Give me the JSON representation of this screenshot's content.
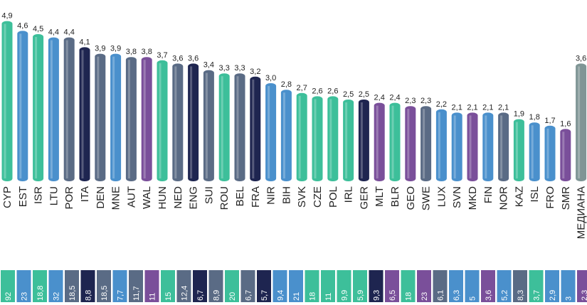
{
  "chart_data": {
    "type": "bar",
    "categories": [
      "CYP",
      "EST",
      "ISR",
      "LTU",
      "POR",
      "ITA",
      "DEN",
      "MNE",
      "AUT",
      "WAL",
      "HUN",
      "NED",
      "ENG",
      "SUI",
      "ROU",
      "BEL",
      "FRA",
      "NIR",
      "BIH",
      "SVK",
      "CZE",
      "POL",
      "IRL",
      "GER",
      "MLT",
      "BLR",
      "GEO",
      "SWE",
      "LUX",
      "SVN",
      "MKD",
      "FIN",
      "NOR",
      "KAZ",
      "ISL",
      "FRO",
      "SMR",
      "МЕДИАНА"
    ],
    "values": [
      4.9,
      4.6,
      4.5,
      4.4,
      4.4,
      4.1,
      3.9,
      3.9,
      3.8,
      3.8,
      3.7,
      3.6,
      3.6,
      3.4,
      3.3,
      3.3,
      3.2,
      3.0,
      2.8,
      2.7,
      2.6,
      2.6,
      2.5,
      2.5,
      2.4,
      2.4,
      2.3,
      2.3,
      2.2,
      2.1,
      2.1,
      2.1,
      2.1,
      1.9,
      1.8,
      1.7,
      1.6,
      3.6
    ],
    "value_labels": [
      "4,9",
      "4,6",
      "4,5",
      "4,4",
      "4,4",
      "4,1",
      "3,9",
      "3,9",
      "3,8",
      "3,8",
      "3,7",
      "3,6",
      "3,6",
      "3,4",
      "3,3",
      "3,3",
      "3,2",
      "3,0",
      "2,8",
      "2,7",
      "2,6",
      "2,6",
      "2,5",
      "2,5",
      "2,4",
      "2,4",
      "2,3",
      "2,3",
      "2,2",
      "2,1",
      "2,1",
      "2,1",
      "2,1",
      "1,9",
      "1,8",
      "1,7",
      "1,6",
      "3,6"
    ],
    "colors": [
      "#3dbf9a",
      "#4a90cc",
      "#3dbf9a",
      "#4a90cc",
      "#5a6b85",
      "#1e2550",
      "#5a6b85",
      "#4a90cc",
      "#5a6b85",
      "#7a4f9a",
      "#3dbf9a",
      "#5a6b85",
      "#1e2550",
      "#5a6b85",
      "#3dbf9a",
      "#5a6b85",
      "#1e2550",
      "#4a90cc",
      "#4a90cc",
      "#3dbf9a",
      "#3dbf9a",
      "#3dbf9a",
      "#3dbf9a",
      "#1e2550",
      "#7a4f9a",
      "#3dbf9a",
      "#7a4f9a",
      "#5a6b85",
      "#4a90cc",
      "#4a90cc",
      "#7a4f9a",
      "#4a90cc",
      "#5a6b85",
      "#3dbf9a",
      "#4a90cc",
      "#4a90cc",
      "#7a4f9a",
      "#7f9595"
    ],
    "bottom_labels": [
      "92",
      "23",
      "18,8",
      "32",
      "18,5",
      "8,8",
      "18,5",
      "7,7",
      "11,7",
      "11",
      "15",
      "12,4",
      "6,7",
      "8,9",
      "20",
      "6,7",
      "5,7",
      "9,4",
      "21",
      "18",
      "11",
      "9,9",
      "5,9",
      "9,3",
      "6,5",
      "18",
      "23",
      "6,1",
      "6,3",
      "5",
      "3,6",
      "5,2",
      "8,3",
      "3,7",
      "2,9",
      "3",
      "2,3"
    ],
    "ylim": [
      0,
      5
    ]
  }
}
